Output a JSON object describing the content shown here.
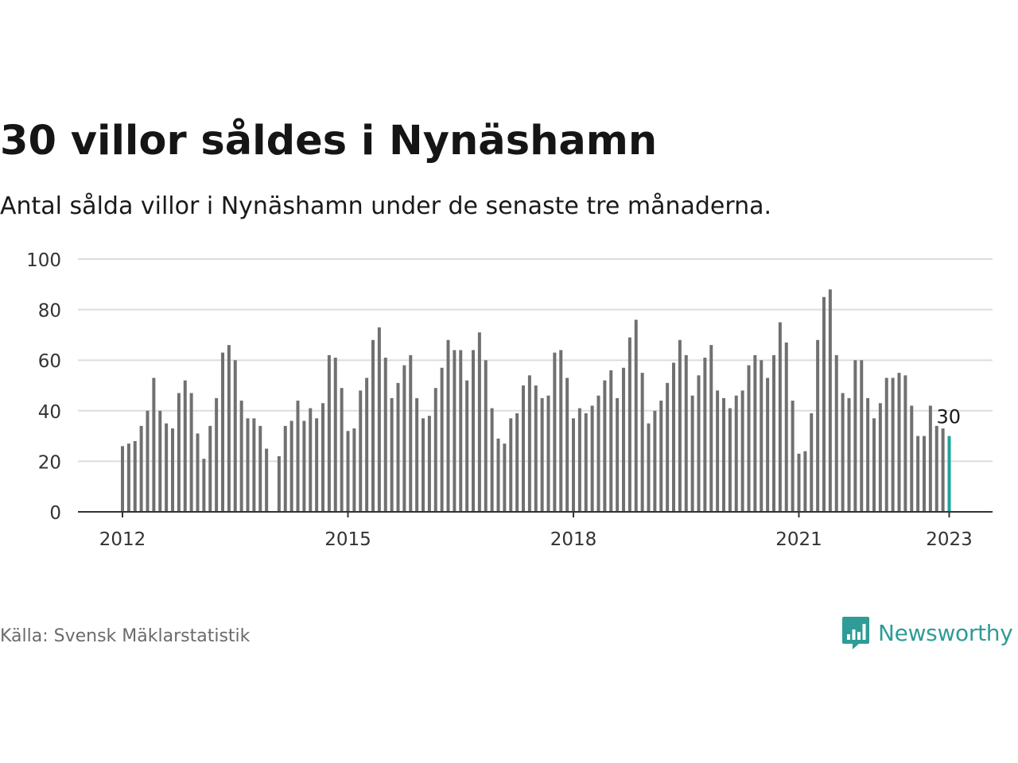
{
  "title": "30 villor såldes i Nynäshamn",
  "subtitle": "Antal sålda villor i Nynäshamn under de senaste tre månaderna.",
  "source": "Källa: Svensk Mäklarstatistik",
  "brand": {
    "name": "Newsworthy",
    "icon": "newsworthy-logo-icon",
    "color": "#2f9c97"
  },
  "colors": {
    "bar": "#707070",
    "highlight": "#1fa39b",
    "grid": "#dddddd",
    "axis": "#333333"
  },
  "chart_data": {
    "type": "bar",
    "ylim": [
      0,
      100
    ],
    "yticks": [
      "0",
      "20",
      "40",
      "60",
      "80",
      "100"
    ],
    "xlim": [
      "2012-01",
      "2023-06"
    ],
    "xticks": [
      {
        "label": "2012",
        "value": "2012-01"
      },
      {
        "label": "2015",
        "value": "2015-01"
      },
      {
        "label": "2018",
        "value": "2018-01"
      },
      {
        "label": "2021",
        "value": "2021-01"
      },
      {
        "label": "2023",
        "value": "2023-01"
      }
    ],
    "grid": true,
    "start": "2012-01",
    "values": [
      26,
      27,
      28,
      34,
      40,
      53,
      40,
      35,
      33,
      47,
      52,
      47,
      31,
      21,
      34,
      45,
      63,
      66,
      60,
      44,
      37,
      37,
      34,
      25,
      null,
      22,
      34,
      36,
      44,
      36,
      41,
      37,
      43,
      62,
      61,
      49,
      32,
      33,
      48,
      53,
      68,
      73,
      61,
      45,
      51,
      58,
      62,
      45,
      37,
      38,
      49,
      57,
      68,
      64,
      64,
      52,
      64,
      71,
      60,
      41,
      29,
      27,
      37,
      39,
      50,
      54,
      50,
      45,
      46,
      63,
      64,
      53,
      37,
      41,
      39,
      42,
      46,
      52,
      56,
      45,
      57,
      69,
      76,
      55,
      35,
      40,
      44,
      51,
      59,
      68,
      62,
      46,
      54,
      61,
      66,
      48,
      45,
      41,
      46,
      48,
      58,
      62,
      60,
      53,
      62,
      75,
      67,
      44,
      23,
      24,
      39,
      68,
      85,
      88,
      62,
      47,
      45,
      60,
      60,
      45,
      37,
      43,
      53,
      53,
      55,
      54,
      42,
      30,
      30,
      42,
      34,
      33,
      30
    ],
    "highlight": {
      "value": 30,
      "label": "30"
    }
  }
}
